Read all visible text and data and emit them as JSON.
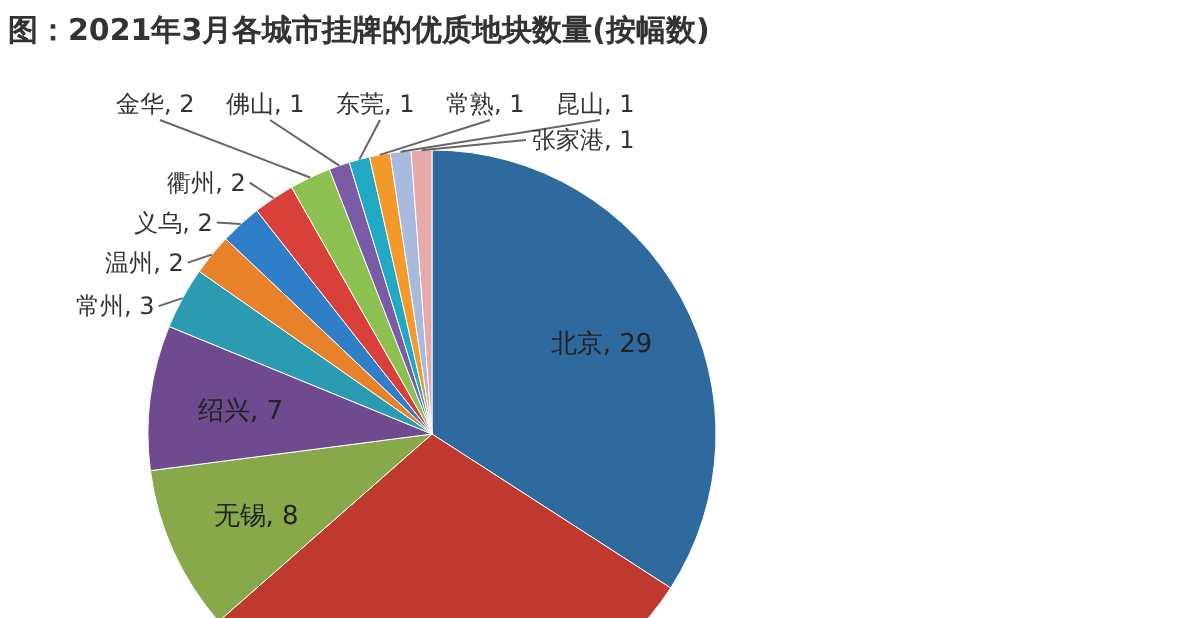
{
  "chart_data": {
    "type": "pie",
    "title": "图：2021年3月各城市挂牌的优质地块数量(按幅数)",
    "categories": [
      "北京",
      null,
      "无锡",
      "绍兴",
      "常州",
      "温州",
      "义乌",
      "衢州",
      "金华",
      "佛山",
      "东莞",
      "常熟",
      "昆山",
      "张家港"
    ],
    "values": [
      29,
      25,
      8,
      7,
      3,
      2,
      2,
      2,
      2,
      1,
      1,
      1,
      1,
      1
    ],
    "value_labels": [
      "29",
      null,
      "8",
      "7",
      "3",
      "2",
      "2",
      "2",
      "2",
      "1",
      "1",
      "1",
      "1",
      "1"
    ],
    "colors": [
      "#2e6a9e",
      "#c0392f",
      "#88a94a",
      "#6f4a8e",
      "#2a9bb0",
      "#e8822a",
      "#2f7fc8",
      "#d9403a",
      "#8cc152",
      "#7b5aa6",
      "#21a9c4",
      "#f39a2b",
      "#a7b9dc",
      "#e6a9a9"
    ]
  }
}
